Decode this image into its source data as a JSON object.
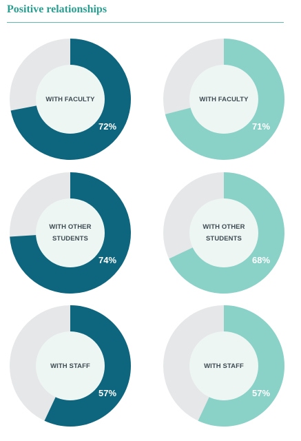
{
  "title": "Positive relationships",
  "colors": {
    "dark": "#0d667d",
    "light": "#8ad2c7",
    "remainder": "#e6e7e9",
    "center": "#eef6f3",
    "title": "#2a9d8f"
  },
  "chart_data": [
    {
      "type": "pie",
      "label": "WITH FACULTY",
      "value": 72,
      "value_label": "72%",
      "series_color": "dark"
    },
    {
      "type": "pie",
      "label": "WITH FACULTY",
      "value": 71,
      "value_label": "71%",
      "series_color": "light"
    },
    {
      "type": "pie",
      "label": "WITH OTHER\nSTUDENTS",
      "value": 74,
      "value_label": "74%",
      "series_color": "dark"
    },
    {
      "type": "pie",
      "label": "WITH OTHER\nSTUDENTS",
      "value": 68,
      "value_label": "68%",
      "series_color": "light"
    },
    {
      "type": "pie",
      "label": "WITH  STAFF",
      "value": 57,
      "value_label": "57%",
      "series_color": "dark"
    },
    {
      "type": "pie",
      "label": "WITH STAFF",
      "value": 57,
      "value_label": "57%",
      "series_color": "light"
    }
  ]
}
